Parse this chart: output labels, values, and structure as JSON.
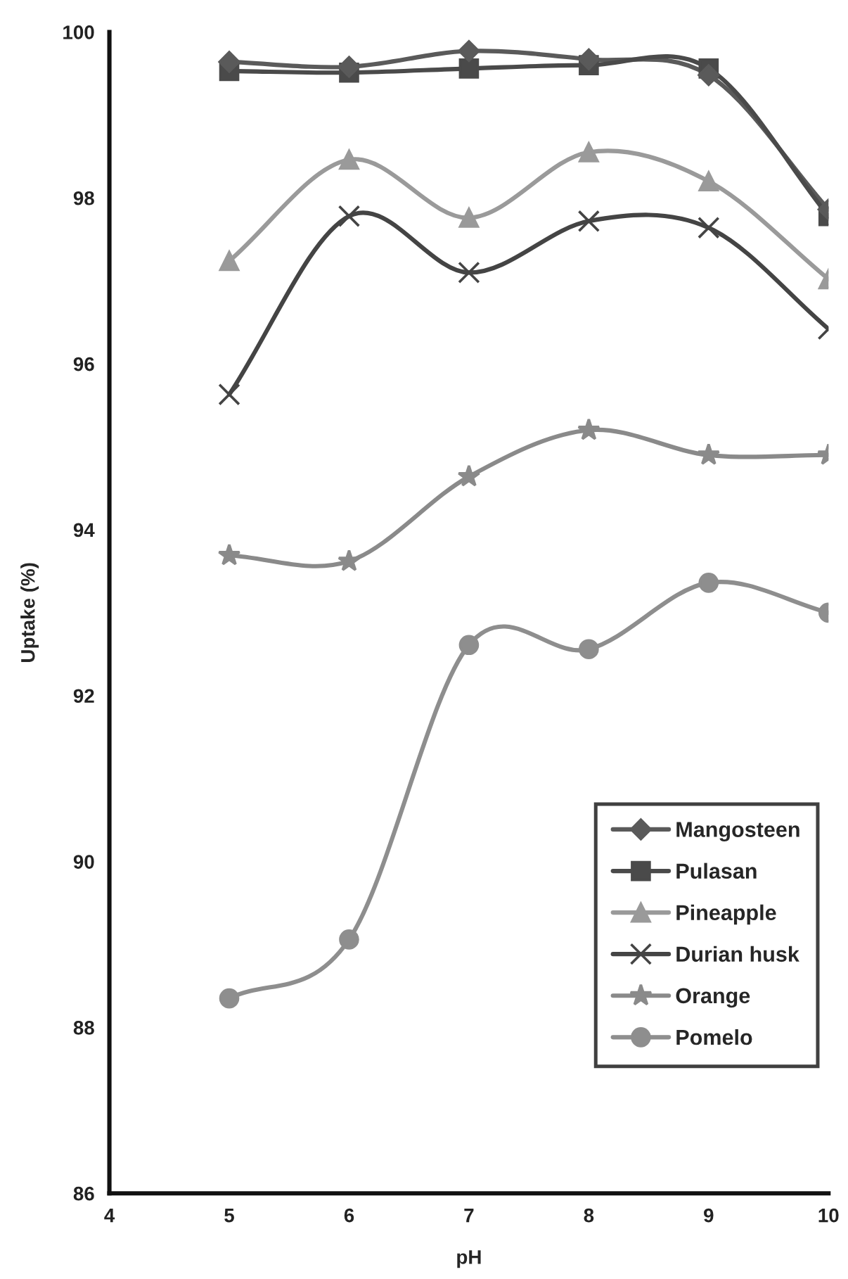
{
  "chart_data": {
    "type": "line",
    "xlabel": "pH",
    "ylabel": "Uptake (%)",
    "x": [
      5,
      6,
      7,
      8,
      9,
      10
    ],
    "xlim": [
      4,
      10
    ],
    "xticks": [
      4,
      5,
      6,
      7,
      8,
      9,
      10
    ],
    "ylim": [
      86,
      100
    ],
    "yticks": [
      86,
      88,
      90,
      92,
      94,
      96,
      98,
      100
    ],
    "grid": false,
    "legend": "bottom right",
    "line_style": "solid",
    "series": [
      {
        "name": "Mangosteen",
        "color": "#5a5a5a",
        "marker": "diamond",
        "values": [
          99.64,
          99.58,
          99.77,
          99.67,
          99.48,
          97.86
        ]
      },
      {
        "name": "Pulasan",
        "color": "#4a4a4a",
        "marker": "square",
        "values": [
          99.53,
          99.51,
          99.56,
          99.6,
          99.56,
          97.78
        ]
      },
      {
        "name": "Pineapple",
        "color": "#9a9a9a",
        "marker": "triangle",
        "values": [
          97.24,
          98.46,
          97.76,
          98.55,
          98.2,
          97.02
        ]
      },
      {
        "name": "Durian husk",
        "color": "#444444",
        "marker": "cross",
        "values": [
          95.63,
          97.78,
          97.1,
          97.72,
          97.64,
          96.42
        ]
      },
      {
        "name": "Orange",
        "color": "#8a8a8a",
        "marker": "star",
        "values": [
          93.69,
          93.62,
          94.64,
          95.2,
          94.9,
          94.9
        ]
      },
      {
        "name": "Pomelo",
        "color": "#8e8e8e",
        "marker": "circle",
        "values": [
          88.35,
          89.06,
          92.61,
          92.56,
          93.36,
          93.0
        ]
      }
    ]
  }
}
